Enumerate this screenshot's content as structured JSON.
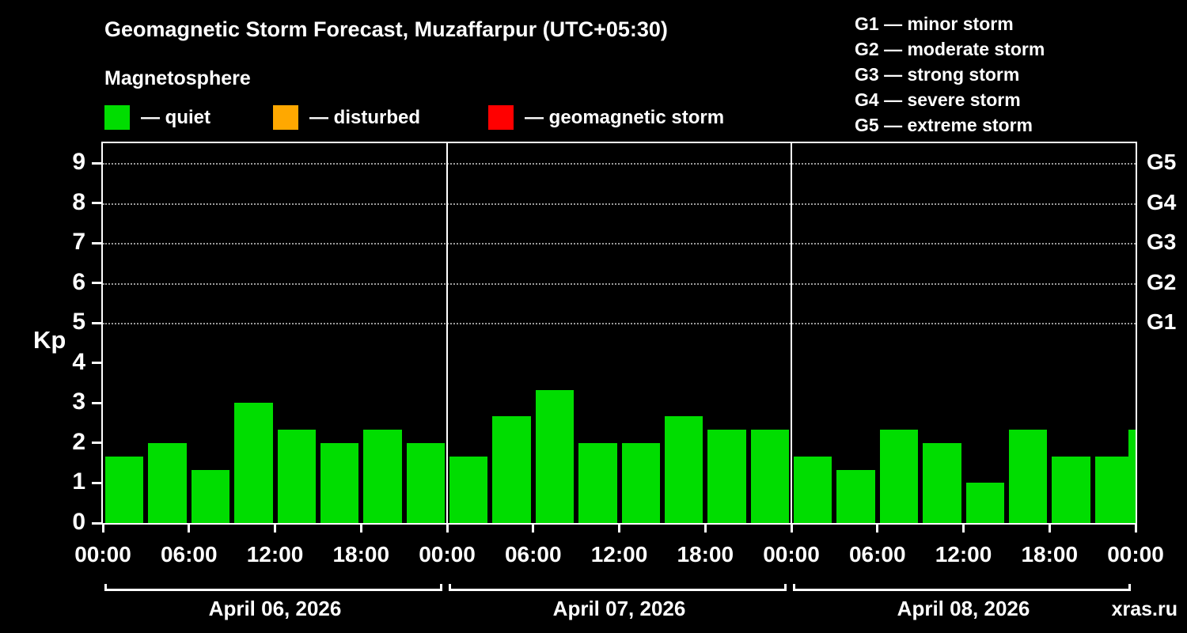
{
  "header": {
    "title": "Geomagnetic Storm Forecast, Muzaffarpur (UTC+05:30)",
    "subtitle": "Magnetosphere"
  },
  "storm_scale": [
    "G1 — minor storm",
    "G2 — moderate storm",
    "G3 — strong storm",
    "G4 — severe storm",
    "G5 — extreme storm"
  ],
  "activity_legend": [
    {
      "color": "#00dd00",
      "label": "— quiet"
    },
    {
      "color": "#ffa800",
      "label": "— disturbed"
    },
    {
      "color": "#ff0000",
      "label": "— geomagnetic storm"
    }
  ],
  "footer": {
    "watermark": "xras.ru"
  },
  "chart_data": {
    "type": "bar",
    "title": "Geomagnetic Storm Forecast, Muzaffarpur (UTC+05:30)",
    "ylabel": "Kp",
    "xlabel": "",
    "ylim": [
      0,
      9.5
    ],
    "y_ticks": [
      0,
      1,
      2,
      3,
      4,
      5,
      6,
      7,
      8,
      9
    ],
    "grid": "dashed horizontal lines at storm levels only",
    "grid_levels": [
      5,
      6,
      7,
      8,
      9
    ],
    "right_axis_labels": [
      {
        "label": "G5",
        "value": 9
      },
      {
        "label": "G4",
        "value": 8
      },
      {
        "label": "G3",
        "value": 7
      },
      {
        "label": "G2",
        "value": 6
      },
      {
        "label": "G1",
        "value": 5
      }
    ],
    "x_tick_labels": [
      "00:00",
      "06:00",
      "12:00",
      "18:00",
      "00:00",
      "06:00",
      "12:00",
      "18:00",
      "00:00",
      "06:00",
      "12:00",
      "18:00",
      "00:00"
    ],
    "bar_interval_hours": 3,
    "days": [
      {
        "label": "April 06, 2026",
        "values": [
          1.67,
          2.0,
          1.33,
          3.0,
          2.33,
          2.0,
          2.33,
          2.0
        ]
      },
      {
        "label": "April 07, 2026",
        "values": [
          1.67,
          2.67,
          3.33,
          2.0,
          2.0,
          2.67,
          2.33,
          2.33
        ]
      },
      {
        "label": "April 08, 2026",
        "values": [
          1.67,
          1.33,
          2.33,
          2.0,
          1.0,
          2.33,
          1.67,
          1.67
        ]
      }
    ],
    "partial_next_value": 2.33,
    "bar_color": "#00dd00",
    "legend_position": "top-left above plot"
  }
}
